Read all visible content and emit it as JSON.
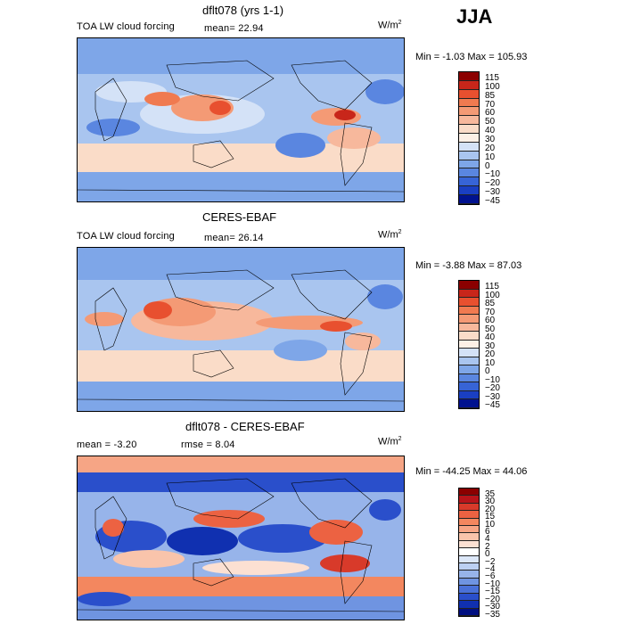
{
  "season": "JJA",
  "panels": [
    {
      "title": "dflt078 (yrs 1-1)",
      "field_label": "TOA LW cloud forcing",
      "stat": "mean=  22.94",
      "units_base": "W/m",
      "units_exp": "2",
      "minmax": "Min =  -1.03 Max = 105.93",
      "levels": [
        "115",
        "100",
        "85",
        "70",
        "60",
        "50",
        "40",
        "30",
        "20",
        "10",
        "0",
        "−10",
        "−20",
        "−30",
        "−45"
      ],
      "colors": [
        "#8b0000",
        "#c8261a",
        "#e8502f",
        "#f07a50",
        "#f49a75",
        "#f7b89c",
        "#fadcc8",
        "#fdf0e6",
        "#d4e2f7",
        "#a9c5ef",
        "#7ea6e8",
        "#5a86e0",
        "#3764d6",
        "#1a3fc2",
        "#00128f"
      ]
    },
    {
      "title": "CERES-EBAF",
      "field_label": "TOA LW cloud forcing",
      "stat": "mean=  26.14",
      "units_base": "W/m",
      "units_exp": "2",
      "minmax": "Min =  -3.88 Max =  87.03",
      "levels": [
        "115",
        "100",
        "85",
        "70",
        "60",
        "50",
        "40",
        "30",
        "20",
        "10",
        "0",
        "−10",
        "−20",
        "−30",
        "−45"
      ],
      "colors": [
        "#8b0000",
        "#c8261a",
        "#e8502f",
        "#f07a50",
        "#f49a75",
        "#f7b89c",
        "#fadcc8",
        "#fdf0e6",
        "#d4e2f7",
        "#a9c5ef",
        "#7ea6e8",
        "#5a86e0",
        "#3764d6",
        "#1a3fc2",
        "#00128f"
      ]
    },
    {
      "title": "dflt078 - CERES-EBAF",
      "stat_mean": "mean =  -3.20",
      "stat_rmse": "rmse =   8.04",
      "units_base": "W/m",
      "units_exp": "2",
      "minmax": "Min = -44.25 Max =  44.06",
      "levels": [
        "35",
        "30",
        "20",
        "15",
        "10",
        "6",
        "4",
        "2",
        "0",
        "−2",
        "−4",
        "−6",
        "−10",
        "−15",
        "−20",
        "−30",
        "−35"
      ],
      "colors": [
        "#8b0000",
        "#b8141a",
        "#d83a2a",
        "#ec6242",
        "#f3875f",
        "#f6a585",
        "#f9c4ab",
        "#fce0d2",
        "#ffffff",
        "#dce7f8",
        "#bcd0f2",
        "#97b4ea",
        "#6f94e1",
        "#4a71d8",
        "#2a4fcb",
        "#1030b0",
        "#000f80"
      ]
    }
  ]
}
